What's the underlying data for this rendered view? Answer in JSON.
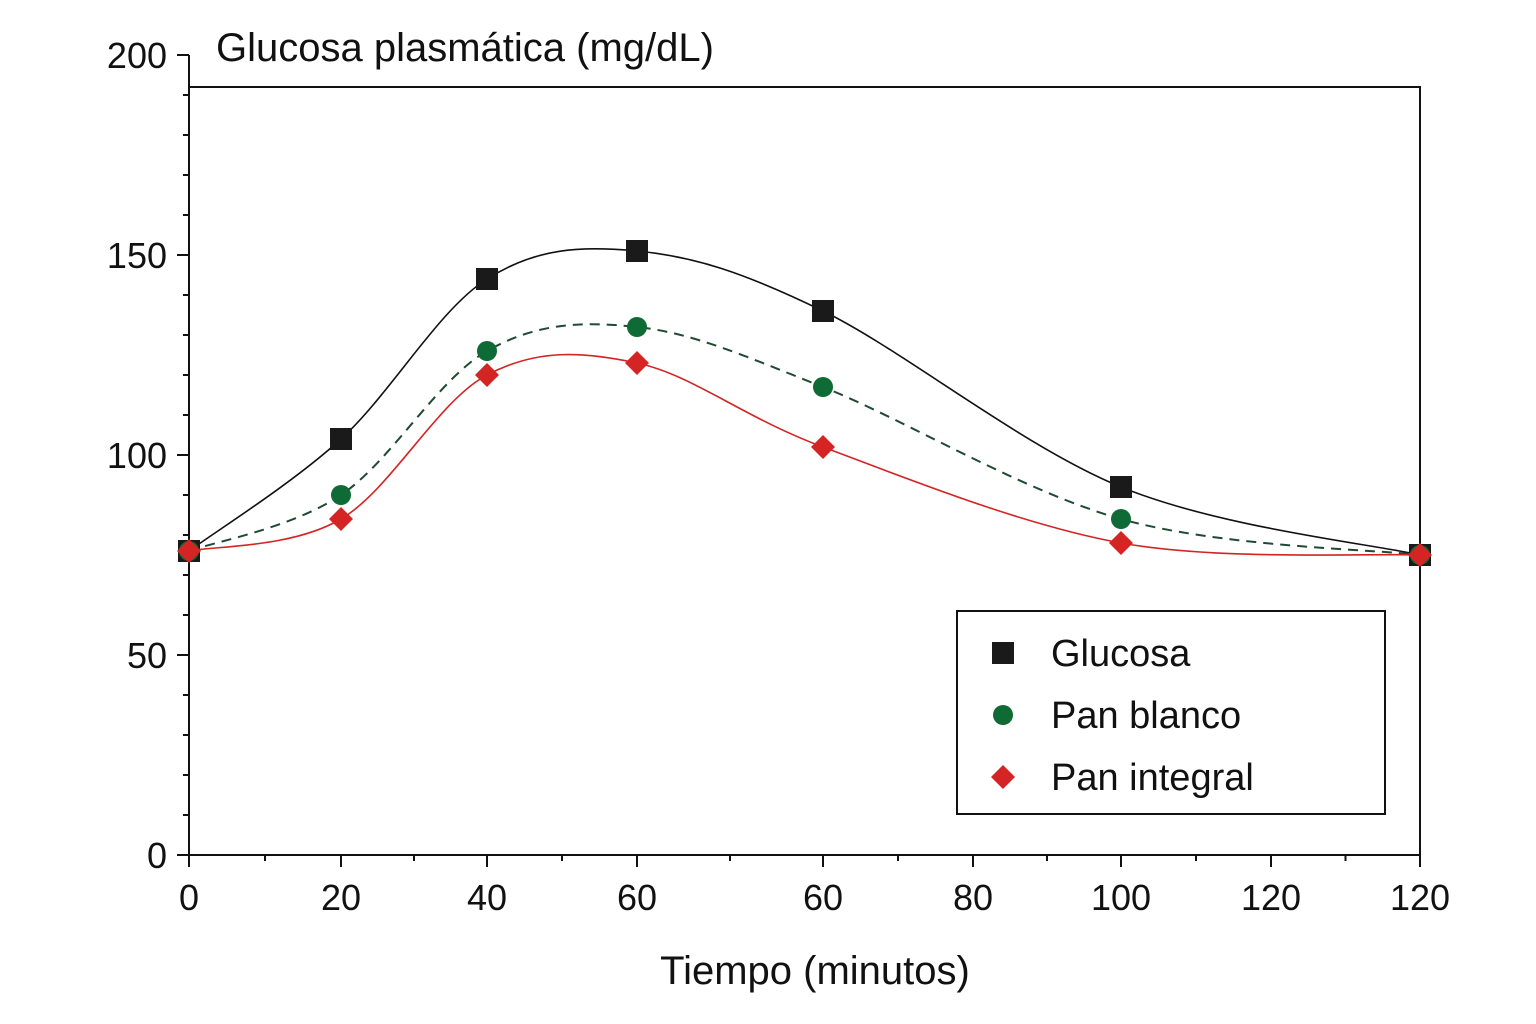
{
  "chart_data": {
    "type": "line",
    "title": "Glucosa plasmática (mg/dL)",
    "xlabel": "Tiempo (minutos)",
    "ylabel": "",
    "ylim": [
      0,
      200
    ],
    "yticks": [
      "0",
      "50",
      "100",
      "150",
      "200"
    ],
    "xtick_labels": [
      "0",
      "20",
      "40",
      "60",
      "60",
      "80",
      "100",
      "120",
      "120"
    ],
    "legend_position": "lower-right",
    "grid": false,
    "series": [
      {
        "name": "Glucosa",
        "marker": "square",
        "line_style": "solid",
        "color": "#1a1a1a",
        "line_color": "#111111",
        "x_index": [
          0,
          1,
          2,
          3,
          4,
          6,
          8
        ],
        "values": [
          76,
          104,
          144,
          151,
          136,
          92,
          75
        ]
      },
      {
        "name": "Pan blanco",
        "marker": "circle",
        "line_style": "dashed",
        "color": "#0f6b35",
        "line_color": "#1f4a33",
        "x_index": [
          0,
          1,
          2,
          3,
          4,
          6,
          8
        ],
        "values": [
          76,
          90,
          126,
          132,
          117,
          84,
          75
        ]
      },
      {
        "name": "Pan integral",
        "marker": "diamond",
        "line_style": "solid",
        "color": "#d42424",
        "line_color": "#d42424",
        "x_index": [
          0,
          1,
          2,
          3,
          4,
          6,
          8
        ],
        "values": [
          76,
          84,
          120,
          123,
          102,
          78,
          75
        ]
      }
    ]
  }
}
